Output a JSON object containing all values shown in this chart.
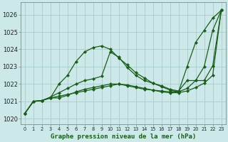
{
  "background_color": "#cce8e8",
  "line_color": "#1a5c1a",
  "grid_color": "#a8cccc",
  "title": "Graphe pression niveau de la mer (hPa)",
  "ylim": [
    1019.7,
    1026.7
  ],
  "xlim": [
    -0.5,
    23.5
  ],
  "yticks": [
    1020,
    1021,
    1022,
    1023,
    1024,
    1025,
    1026
  ],
  "xticks": [
    0,
    1,
    2,
    3,
    4,
    5,
    6,
    7,
    8,
    9,
    10,
    11,
    12,
    13,
    14,
    15,
    16,
    17,
    18,
    19,
    20,
    21,
    22,
    23
  ],
  "series": [
    [
      1020.3,
      1021.0,
      1021.05,
      1021.2,
      1022.0,
      1022.5,
      1023.3,
      1023.85,
      1024.1,
      1024.2,
      1024.0,
      1023.5,
      1023.1,
      1022.65,
      1022.35,
      1022.05,
      1021.85,
      1021.65,
      1021.55,
      1023.0,
      1024.4,
      1025.1,
      1025.8,
      1026.25
    ],
    [
      1020.3,
      1021.0,
      1021.05,
      1021.25,
      1021.5,
      1021.75,
      1022.0,
      1022.2,
      1022.3,
      1022.45,
      1023.85,
      1023.55,
      1022.95,
      1022.5,
      1022.2,
      1022.05,
      1021.9,
      1021.7,
      1021.6,
      1022.2,
      1022.2,
      1023.0,
      1025.1,
      1026.25
    ],
    [
      1020.3,
      1021.0,
      1021.05,
      1021.2,
      1021.2,
      1021.35,
      1021.55,
      1021.7,
      1021.8,
      1021.9,
      1022.0,
      1022.0,
      1021.95,
      1021.85,
      1021.75,
      1021.65,
      1021.6,
      1021.55,
      1021.55,
      1021.75,
      1022.2,
      1022.2,
      1023.05,
      1026.25
    ],
    [
      1020.3,
      1021.0,
      1021.05,
      1021.2,
      1021.3,
      1021.4,
      1021.5,
      1021.6,
      1021.7,
      1021.8,
      1021.9,
      1022.0,
      1021.9,
      1021.8,
      1021.7,
      1021.65,
      1021.55,
      1021.5,
      1021.5,
      1021.6,
      1021.8,
      1022.05,
      1022.5,
      1026.25
    ]
  ]
}
